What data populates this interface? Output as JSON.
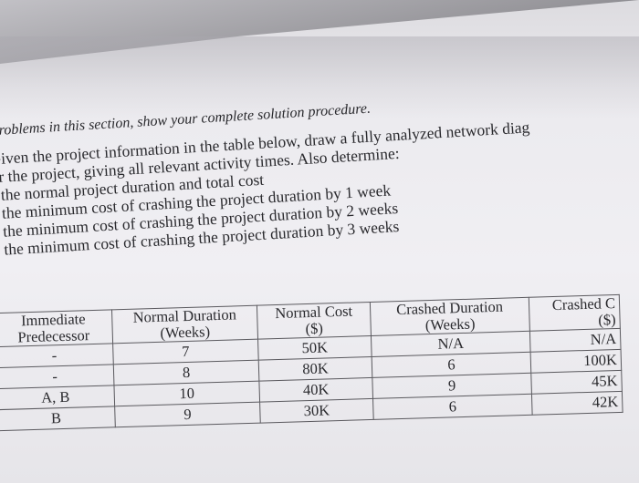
{
  "instructions": {
    "intro": "problems in this section, show your complete solution procedure.",
    "line1": "Given the project information in the table below, draw a fully analyzed network diag",
    "line2": "or the project, giving all relevant activity times. Also determine:",
    "items": [
      "the normal project duration and total cost",
      "the minimum cost of crashing the project duration by 1 week",
      "the minimum cost of crashing the project duration by 2 weeks",
      "the minimum cost of crashing the project duration by 3 weeks"
    ]
  },
  "table": {
    "headers": [
      {
        "line1": "Immediate",
        "line2": "Predecessor"
      },
      {
        "line1": "Normal Duration",
        "line2": "(Weeks)"
      },
      {
        "line1": "Normal Cost",
        "line2": "($)"
      },
      {
        "line1": "Crashed Duration",
        "line2": "(Weeks)"
      },
      {
        "line1": "Crashed C",
        "line2": "($)"
      }
    ],
    "rows": [
      [
        "-",
        "7",
        "50K",
        "N/A",
        "N/A"
      ],
      [
        "-",
        "8",
        "80K",
        "6",
        "100K"
      ],
      [
        "A, B",
        "10",
        "40K",
        "9",
        "45K"
      ],
      [
        "B",
        "9",
        "30K",
        "6",
        "42K"
      ]
    ]
  }
}
